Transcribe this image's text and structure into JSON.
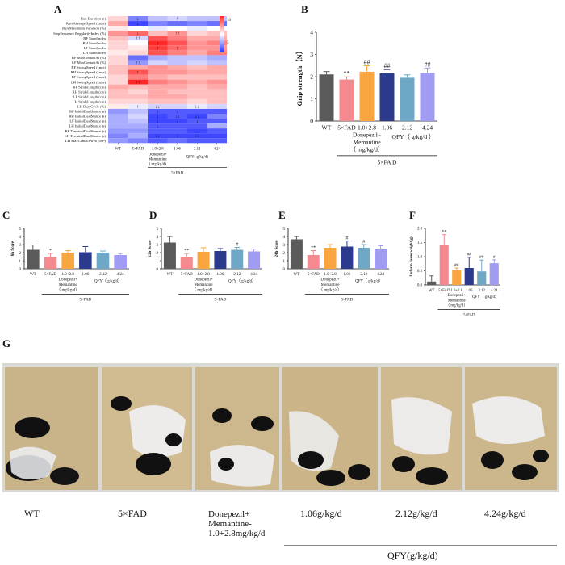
{
  "panels": {
    "A": "A",
    "B": "B",
    "C": "C",
    "D": "D",
    "E": "E",
    "F": "F",
    "G": "G"
  },
  "chart_data": [
    {
      "panel": "A",
      "type": "heatmap",
      "rows": [
        "Run Duration (s)",
        "Run Average Speed (cm/s)",
        "Run Maximum Variation (%)",
        "StepSequence RegularityIndex (%)",
        "RF StandIndex",
        "RH StandIndex",
        "LF StandIndex",
        "LH StandIndex",
        "RF MaxContactAt (%)",
        "LF MaxContactAt (%)",
        "RF SwingSpeed (cm/s)",
        "RH SwingSpeed (cm/s)",
        "LF SwingSpeed (cm/s)",
        "LH SwingSpeed (cm/s)",
        "RF StrideLength (cm)",
        "RH StrideLength (cm)",
        "LF StrideLength (cm)",
        "LH StrideLength (cm)",
        "LH DutyCycle (%)",
        "RF InitialDualStance (s)",
        "RH InitialDualStance (s)",
        "LF InitialDualStance (s)",
        "LH InitialDualStance (s)",
        "RF TerminalDualStance (s)",
        "LH TerminalDualStance (s)",
        "LH MaxContactArea (cm²)"
      ],
      "columns": [
        "WT",
        "5×FAD",
        "1.0+2.8",
        "1.06",
        "2.12",
        "4.24"
      ],
      "group_label": "Donepezil+ Memantine ( mg/kg/d)",
      "qfy_label": "QFY( g/kg/d)",
      "fad_label": "5×FAD",
      "legend_ticks": [
        "10",
        "5"
      ],
      "values": [
        [
          0.2,
          -0.6,
          -0.3,
          -0.2,
          -0.3,
          -0.3
        ],
        [
          0.4,
          -0.9,
          -0.6,
          -0.7,
          -0.6,
          -0.7
        ],
        [
          0.1,
          0.0,
          -0.1,
          0.0,
          -0.1,
          0.0
        ],
        [
          0.5,
          0.7,
          0.3,
          0.5,
          0.2,
          0.3
        ],
        [
          0.3,
          -0.2,
          0.8,
          0.6,
          0.4,
          0.4
        ],
        [
          0.2,
          0.0,
          1.0,
          0.8,
          0.5,
          0.6
        ],
        [
          0.2,
          0.1,
          0.9,
          0.7,
          0.5,
          0.5
        ],
        [
          0.1,
          0.2,
          0.8,
          0.6,
          0.4,
          0.6
        ],
        [
          0.2,
          -0.7,
          -0.4,
          -0.3,
          -0.3,
          -0.4
        ],
        [
          0.2,
          -0.5,
          -0.2,
          -0.3,
          -0.2,
          -0.3
        ],
        [
          0.3,
          0.4,
          0.5,
          0.4,
          0.3,
          0.4
        ],
        [
          0.3,
          0.8,
          0.5,
          0.5,
          0.4,
          0.4
        ],
        [
          0.2,
          0.6,
          0.4,
          0.3,
          0.3,
          0.3
        ],
        [
          0.2,
          1.0,
          0.6,
          0.5,
          0.4,
          0.5
        ],
        [
          0.4,
          0.3,
          0.4,
          0.4,
          0.3,
          0.4
        ],
        [
          0.3,
          0.2,
          0.4,
          0.3,
          0.3,
          0.3
        ],
        [
          0.3,
          0.3,
          0.4,
          0.4,
          0.3,
          0.3
        ],
        [
          0.2,
          0.2,
          0.3,
          0.3,
          0.2,
          0.3
        ],
        [
          0.1,
          -0.1,
          -0.2,
          -0.2,
          -0.1,
          -0.2
        ],
        [
          -0.5,
          -0.3,
          -0.8,
          -0.8,
          -0.8,
          -0.8
        ],
        [
          -0.4,
          -0.2,
          -0.9,
          -0.8,
          -0.9,
          -0.6
        ],
        [
          -0.4,
          -0.3,
          -0.9,
          -0.9,
          -0.8,
          -0.8
        ],
        [
          -0.4,
          -0.4,
          -0.8,
          -0.8,
          -0.8,
          -0.4
        ],
        [
          -0.5,
          -0.5,
          -0.8,
          -0.8,
          -0.9,
          -0.8
        ],
        [
          -0.6,
          -0.4,
          -0.9,
          -0.9,
          -0.9,
          -0.9
        ],
        [
          -0.5,
          -0.6,
          -0.8,
          -0.7,
          -0.8,
          -0.8
        ]
      ],
      "arrows": [
        {
          "row": 0,
          "col": 1,
          "text": "↓"
        },
        {
          "row": 0,
          "col": 3,
          "text": "↑"
        },
        {
          "row": 1,
          "col": 1,
          "text": "↓"
        },
        {
          "row": 3,
          "col": 1,
          "text": "↓"
        },
        {
          "row": 3,
          "col": 3,
          "text": "↑↑"
        },
        {
          "row": 4,
          "col": 1,
          "text": "↑↑"
        },
        {
          "row": 5,
          "col": 2,
          "text": "↑"
        },
        {
          "row": 6,
          "col": 2,
          "text": "↑"
        },
        {
          "row": 6,
          "col": 3,
          "text": "↑"
        },
        {
          "row": 9,
          "col": 1,
          "text": "↑↑"
        },
        {
          "row": 11,
          "col": 1,
          "text": "↑"
        },
        {
          "row": 13,
          "col": 1,
          "text": "↑↑"
        },
        {
          "row": 18,
          "col": 1,
          "text": "↑"
        },
        {
          "row": 18,
          "col": 2,
          "text": "↓↓"
        },
        {
          "row": 18,
          "col": 4,
          "text": "↓↓"
        },
        {
          "row": 19,
          "col": 2,
          "text": "↓"
        },
        {
          "row": 19,
          "col": 3,
          "text": "↓"
        },
        {
          "row": 20,
          "col": 2,
          "text": "↓"
        },
        {
          "row": 20,
          "col": 3,
          "text": "↓↓"
        },
        {
          "row": 20,
          "col": 4,
          "text": "↓↓"
        },
        {
          "row": 21,
          "col": 2,
          "text": "↓"
        },
        {
          "row": 21,
          "col": 3,
          "text": "↓"
        },
        {
          "row": 21,
          "col": 4,
          "text": "↓"
        },
        {
          "row": 22,
          "col": 2,
          "text": "↓"
        },
        {
          "row": 24,
          "col": 2,
          "text": "↓↓"
        },
        {
          "row": 24,
          "col": 3,
          "text": "↓"
        },
        {
          "row": 24,
          "col": 4,
          "text": "↓↓"
        }
      ]
    },
    {
      "panel": "B",
      "type": "bar",
      "ylabel": "Grip strength（N）",
      "ylim": [
        0,
        4
      ],
      "yticks": [
        "0",
        "1",
        "2",
        "3",
        "4"
      ],
      "categories": [
        "WT",
        "5×FAD",
        "1.0+2.8",
        "1.06",
        "2.12",
        "4.24"
      ],
      "values": [
        2.1,
        1.87,
        2.22,
        2.15,
        1.95,
        2.17
      ],
      "errors": [
        0.13,
        0.12,
        0.27,
        0.17,
        0.13,
        0.22
      ],
      "marks": [
        "",
        "**",
        "##",
        "##",
        "",
        "##"
      ],
      "colors": [
        "#5a5a5a",
        "#f48a8f",
        "#f9a640",
        "#2b3a8c",
        "#6fa7c6",
        "#a09cf2"
      ],
      "group_label": "Donepezil+ Memantine （ mg/kg/d）",
      "qfy_label": "QFY（ g/kg/d ）",
      "fad_label": "5×FA D"
    },
    {
      "panel": "C",
      "type": "bar",
      "ylabel": "6h Score",
      "ylim": [
        0,
        5
      ],
      "yticks": [
        "0",
        "1",
        "2",
        "3",
        "4",
        "5"
      ],
      "categories": [
        "WT",
        "5×FAD",
        "1.0+2.8",
        "1.06",
        "2.12",
        "4.24"
      ],
      "values": [
        2.35,
        1.45,
        2.0,
        2.05,
        2.0,
        1.7
      ],
      "errors": [
        0.6,
        0.45,
        0.25,
        0.7,
        0.2,
        0.2
      ],
      "marks": [
        "",
        "*",
        "",
        "",
        "",
        ""
      ],
      "colors": [
        "#5a5a5a",
        "#f48a8f",
        "#f9a640",
        "#2b3a8c",
        "#6fa7c6",
        "#a09cf2"
      ],
      "group_label": "Donepezil+ Memantine （ mg/kg/d）",
      "qfy_label": "QFY（ g/kg/d）",
      "fad_label": "5×FAD"
    },
    {
      "panel": "D",
      "type": "bar",
      "ylabel": "12h Score",
      "ylim": [
        0,
        5
      ],
      "yticks": [
        "0",
        "1",
        "2",
        "3",
        "4",
        "5"
      ],
      "categories": [
        "WT",
        "5×FAD",
        "1.0+2.8",
        "1.06",
        "2.12",
        "4.24"
      ],
      "values": [
        3.25,
        1.5,
        2.1,
        2.2,
        2.35,
        2.15
      ],
      "errors": [
        0.75,
        0.4,
        0.5,
        0.3,
        0.3,
        0.3
      ],
      "marks": [
        "",
        "**",
        "",
        "",
        "#",
        ""
      ],
      "colors": [
        "#5a5a5a",
        "#f48a8f",
        "#f9a640",
        "#2b3a8c",
        "#6fa7c6",
        "#a09cf2"
      ],
      "group_label": "Donepezil+ Memantine （ mg/kg/d）",
      "qfy_label": "QFY（ g/kg/d）",
      "fad_label": "5×FAD"
    },
    {
      "panel": "E",
      "type": "bar",
      "ylabel": "24h Score",
      "ylim": [
        0,
        5
      ],
      "yticks": [
        "0",
        "1",
        "2",
        "3",
        "4",
        "5"
      ],
      "categories": [
        "WT",
        "5×FAD",
        "1.0+2.8",
        "1.06",
        "2.12",
        "4.24"
      ],
      "values": [
        3.65,
        1.7,
        2.6,
        2.75,
        2.6,
        2.5
      ],
      "errors": [
        0.35,
        0.55,
        0.4,
        0.7,
        0.4,
        0.35
      ],
      "marks": [
        "",
        "**",
        "",
        "#",
        "#",
        ""
      ],
      "colors": [
        "#5a5a5a",
        "#f48a8f",
        "#f9a640",
        "#2b3a8c",
        "#6fa7c6",
        "#a09cf2"
      ],
      "group_label": "Donepezil+ Memantine （ mg/kg/d）",
      "qfy_label": "QFY（ g/kg/d）",
      "fad_label": "5×FAD"
    },
    {
      "panel": "F",
      "type": "bar",
      "ylabel": "Unform tissue weight(g)",
      "ylim": [
        0,
        2.0
      ],
      "yticks": [
        "0.0",
        "0.5",
        "1.0",
        "1.5",
        "2.0"
      ],
      "categories": [
        "WT",
        "5×FAD",
        "1.0+2.8",
        "1.06",
        "2.12",
        "4.24"
      ],
      "values": [
        0.12,
        1.4,
        0.52,
        0.6,
        0.48,
        0.77
      ],
      "errors": [
        0.2,
        0.38,
        0.08,
        0.38,
        0.4,
        0.12
      ],
      "marks": [
        "",
        "**",
        "##",
        "##",
        "##",
        "#"
      ],
      "colors": [
        "#5a5a5a",
        "#f48a8f",
        "#f9a640",
        "#2b3a8c",
        "#6fa7c6",
        "#a09cf2"
      ],
      "group_label": "Donepezil+ Memantine （ mg/kg/d）",
      "qfy_label": "QFY（ g/kg/d）",
      "fad_label": "5×FAD"
    }
  ],
  "photos": {
    "labels": [
      "WT",
      "5×FAD",
      "Donepezil+ Memantine- 1.0+2.8mg/kg/d",
      "1.06g/kg/d",
      "2.12g/kg/d",
      "4.24g/kg/d"
    ],
    "qfy_label": "QFY(g/kg/d)"
  }
}
